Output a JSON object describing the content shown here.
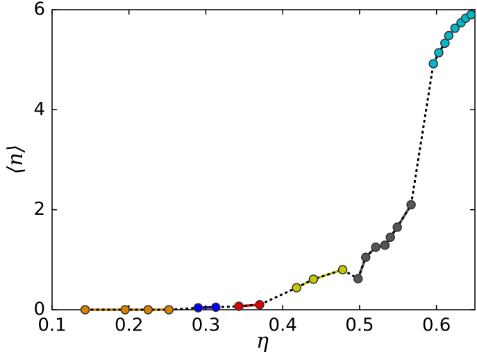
{
  "chart_data": {
    "type": "line",
    "xlabel": "η",
    "ylabel": "⟨n⟩",
    "xlim": [
      0.1,
      0.65
    ],
    "ylim": [
      0,
      6
    ],
    "xticks": [
      0.1,
      0.2,
      0.3,
      0.4,
      0.5,
      0.6
    ],
    "yticks": [
      0,
      2,
      4,
      6
    ],
    "series": [
      {
        "color": "#d98000",
        "x": [
          0.143,
          0.195,
          0.225,
          0.252
        ],
        "values": [
          0,
          0,
          0,
          0
        ]
      },
      {
        "color": "#0000ee",
        "x": [
          0.29,
          0.313
        ],
        "values": [
          0.04,
          0.05
        ]
      },
      {
        "color": "#e00000",
        "x": [
          0.343,
          0.37
        ],
        "values": [
          0.07,
          0.1
        ]
      },
      {
        "color": "#c8c800",
        "x": [
          0.418,
          0.44,
          0.478
        ],
        "values": [
          0.44,
          0.61,
          0.8
        ]
      },
      {
        "color": "#555555",
        "x": [
          0.498,
          0.508,
          0.521,
          0.533,
          0.54,
          0.549,
          0.567
        ],
        "values": [
          0.62,
          1.05,
          1.25,
          1.29,
          1.45,
          1.65,
          2.1
        ]
      },
      {
        "color": "#00b8c8",
        "x": [
          0.596,
          0.603,
          0.611,
          0.616,
          0.624,
          0.632,
          0.638,
          0.645
        ],
        "values": [
          4.92,
          5.14,
          5.33,
          5.48,
          5.63,
          5.74,
          5.83,
          5.9
        ]
      }
    ]
  }
}
